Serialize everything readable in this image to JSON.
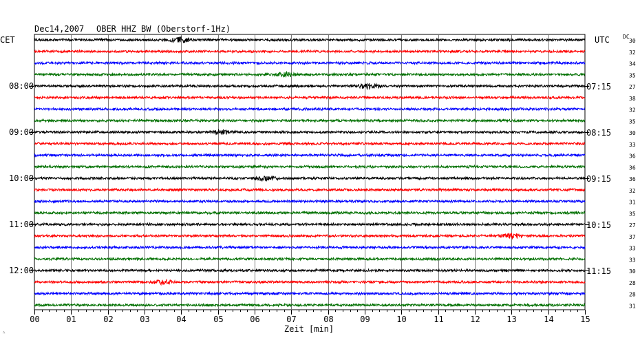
{
  "header": {
    "date": "Dec14,2007",
    "station": "OBER HHZ BW (Oberstorf-1Hz)",
    "left_timezone": "CET",
    "right_timezone": "UTC",
    "dc_label": "DC"
  },
  "chart_data": {
    "type": "line",
    "title": "Dec14,2007   OBER HHZ BW (Oberstorf-1Hz)",
    "xlabel": "Zeit [min]",
    "xlim": [
      0,
      15
    ],
    "x_ticks": [
      "00",
      "01",
      "02",
      "03",
      "04",
      "05",
      "06",
      "07",
      "08",
      "09",
      "10",
      "11",
      "12",
      "13",
      "14",
      "15"
    ],
    "grid": true,
    "trace_colors": [
      "#000000",
      "#ff0000",
      "#0000ff",
      "#007000"
    ],
    "traces": [
      {
        "index": 0,
        "dc": "30",
        "event_minute": 4.0
      },
      {
        "index": 1,
        "dc": "32"
      },
      {
        "index": 2,
        "dc": "34"
      },
      {
        "index": 3,
        "dc": "35",
        "event_minute": 6.8
      },
      {
        "index": 4,
        "dc": "27",
        "left_time": "08:00",
        "right_time": "07:15",
        "event_minute": 9.1
      },
      {
        "index": 5,
        "dc": "38"
      },
      {
        "index": 6,
        "dc": "32"
      },
      {
        "index": 7,
        "dc": "35"
      },
      {
        "index": 8,
        "dc": "30",
        "left_time": "09:00",
        "right_time": "08:15",
        "event_minute": 5.1
      },
      {
        "index": 9,
        "dc": "33"
      },
      {
        "index": 10,
        "dc": "36"
      },
      {
        "index": 11,
        "dc": "36"
      },
      {
        "index": 12,
        "dc": "36",
        "left_time": "10:00",
        "right_time": "09:15",
        "event_minute": 6.3
      },
      {
        "index": 13,
        "dc": "32"
      },
      {
        "index": 14,
        "dc": "31"
      },
      {
        "index": 15,
        "dc": "35"
      },
      {
        "index": 16,
        "dc": "27",
        "left_time": "11:00",
        "right_time": "10:15"
      },
      {
        "index": 17,
        "dc": "37",
        "event_minute": 13.0
      },
      {
        "index": 18,
        "dc": "33"
      },
      {
        "index": 19,
        "dc": "33"
      },
      {
        "index": 20,
        "dc": "30",
        "left_time": "12:00",
        "right_time": "11:15"
      },
      {
        "index": 21,
        "dc": "28",
        "event_minute": 3.5
      },
      {
        "index": 22,
        "dc": "28"
      },
      {
        "index": 23,
        "dc": "31"
      }
    ]
  }
}
